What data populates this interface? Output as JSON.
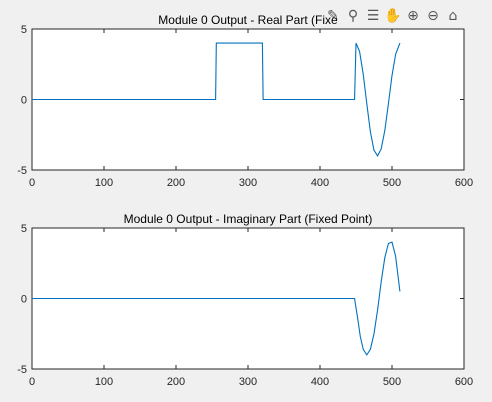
{
  "toolbar": [
    {
      "name": "brush-icon",
      "glyph": "✎"
    },
    {
      "name": "data-tips-icon",
      "glyph": "⚲"
    },
    {
      "name": "restore-view-icon",
      "glyph": "☰"
    },
    {
      "name": "pan-hand-icon",
      "glyph": "✋"
    },
    {
      "name": "zoom-in-icon",
      "glyph": "⊕"
    },
    {
      "name": "zoom-out-icon",
      "glyph": "⊖"
    },
    {
      "name": "home-icon",
      "glyph": "⌂"
    }
  ],
  "chart_data": [
    {
      "type": "line",
      "title": "Module 0 Output - Real Part (Fixe",
      "xlim": [
        0,
        600
      ],
      "ylim": [
        -5,
        5
      ],
      "xticks": [
        "0",
        "100",
        "200",
        "300",
        "400",
        "500",
        "600"
      ],
      "yticks": [
        "5",
        "0",
        "-5"
      ],
      "series": [
        {
          "color": "#0072bd",
          "x": [
            0,
            255,
            256,
            320,
            321,
            448,
            450,
            455,
            460,
            465,
            470,
            475,
            480,
            485,
            490,
            495,
            500,
            505,
            511
          ],
          "y": [
            0,
            0,
            4,
            4,
            0,
            0,
            4,
            3.4,
            1.8,
            -0.3,
            -2.3,
            -3.6,
            -4,
            -3.5,
            -2.2,
            -0.3,
            1.7,
            3.2,
            4
          ]
        }
      ]
    },
    {
      "type": "line",
      "title": "Module 0 Output - Imaginary Part (Fixed Point)",
      "xlim": [
        0,
        600
      ],
      "ylim": [
        -5,
        5
      ],
      "xticks": [
        "0",
        "100",
        "200",
        "300",
        "400",
        "500",
        "600"
      ],
      "yticks": [
        "5",
        "0",
        "-5"
      ],
      "series": [
        {
          "color": "#0072bd",
          "x": [
            0,
            448,
            452,
            456,
            460,
            465,
            470,
            475,
            480,
            485,
            490,
            495,
            500,
            505,
            511
          ],
          "y": [
            0,
            0,
            -1.3,
            -2.7,
            -3.6,
            -4,
            -3.6,
            -2.5,
            -0.8,
            1.2,
            2.9,
            3.9,
            4,
            3,
            0.5
          ]
        }
      ]
    }
  ]
}
